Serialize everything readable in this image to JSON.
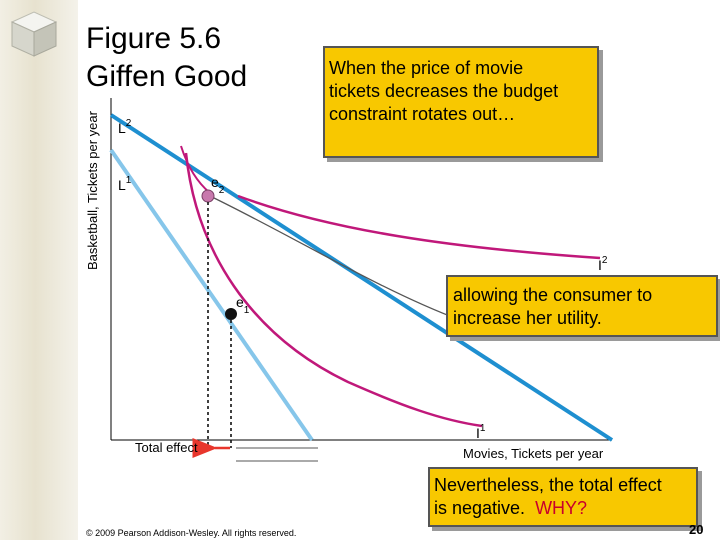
{
  "title": {
    "line1": "Figure 5.6",
    "line2": "Giffen Good"
  },
  "callouts": {
    "top": {
      "line1": "When the price of movie",
      "line2": "tickets decreases the budget",
      "line3": "constraint rotates out…"
    },
    "middle": {
      "line1": "allowing the consumer to",
      "line2": "increase her utility."
    }
  },
  "footer": {
    "question_line1": "Nevertheless, the total effect",
    "question_line2_prefix": "is negative.  ",
    "question_emphasis": "WHY?",
    "copyright": "© 2009 Pearson Addison-Wesley. All rights reserved.",
    "page_number": "20"
  },
  "diagram": {
    "y_axis_label": "Basketball, Tickets per year",
    "x_axis_label": "Movies, Tickets per year",
    "budget_lines": {
      "L2": "L",
      "L2_sup": "2",
      "L1": "L",
      "L1_sup": "1"
    },
    "indifference_curves": {
      "I2": "I",
      "I2_sup": "2",
      "I1": "I",
      "I1_sup": "1"
    },
    "equilibria": {
      "e2": "e",
      "e2_sub": "2",
      "e1": "e",
      "e1_sub": "1"
    },
    "total_effect_label": "Total effect",
    "colors": {
      "new_budget_line": "#1e8fd0",
      "original_budget_line": "#86c6ea",
      "indifference_curve": "#c0187a",
      "total_effect_arrow": "#e8362c",
      "callout_fill": "#f8c800"
    }
  }
}
